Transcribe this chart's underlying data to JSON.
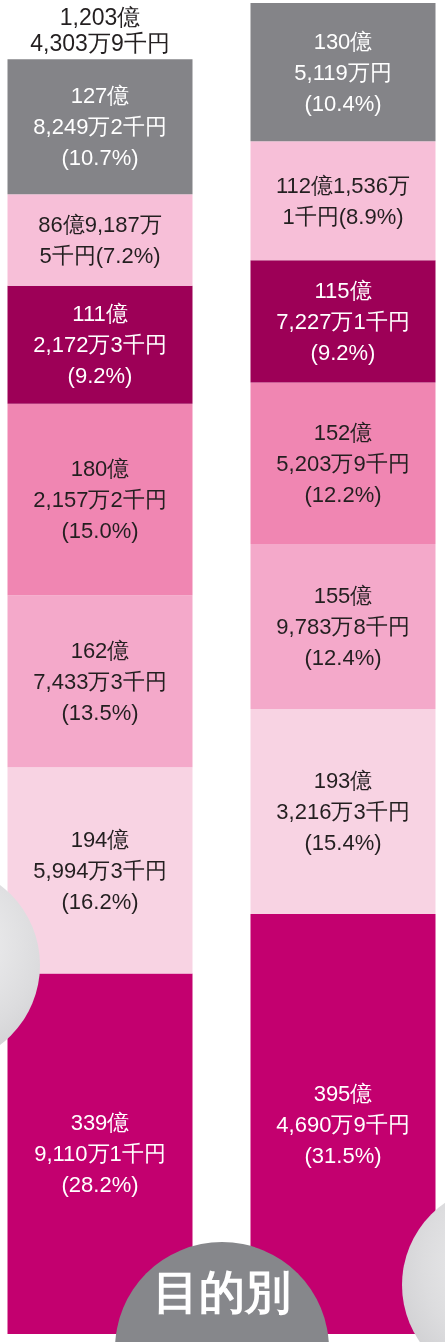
{
  "chart_data": {
    "type": "bar",
    "stacked": true,
    "title": "目的別",
    "categories": [
      null,
      null
    ],
    "series": [
      {
        "color": "#c3006f",
        "values": [
          339,
          395
        ],
        "value_labels": [
          "339億\n9,110万1千円\n(28.2%)",
          "395億\n4,690万9千円\n(31.5%)"
        ]
      },
      {
        "color": "#f8d3e3",
        "values": [
          194,
          193
        ],
        "value_labels": [
          "194億\n5,994万3千円\n(16.2%)",
          "193億\n3,216万3千円\n(15.4%)"
        ]
      },
      {
        "color": "#f4a9ca",
        "values": [
          162,
          155
        ],
        "value_labels": [
          "162億\n7,433万3千円\n(13.5%)",
          "155億\n9,783万8千円\n(12.4%)"
        ]
      },
      {
        "color": "#f086b2",
        "values": [
          180,
          152
        ],
        "value_labels": [
          "180億\n2,157万2千円\n(15.0%)",
          "152億\n5,203万9千円\n(12.2%)"
        ]
      },
      {
        "color": "#9d0057",
        "values": [
          111,
          115
        ],
        "value_labels": [
          "111億\n2,172万3千円\n(9.2%)",
          "115億\n7,227万1千円\n(9.2%)"
        ]
      },
      {
        "color": "#f7bfd8",
        "values": [
          86,
          112
        ],
        "value_labels": [
          "86億9,187万\n5千円(7.2%)",
          "112億1,536万\n1千円(8.9%)"
        ]
      },
      {
        "color": "#848488",
        "values": [
          127,
          130
        ],
        "value_labels": [
          "127億\n8,249万2千円\n(10.7%)",
          "130億\n5,119万円\n(10.4%)"
        ]
      }
    ],
    "totals": [
      "1,203億\n4,303万9千円",
      null
    ]
  }
}
